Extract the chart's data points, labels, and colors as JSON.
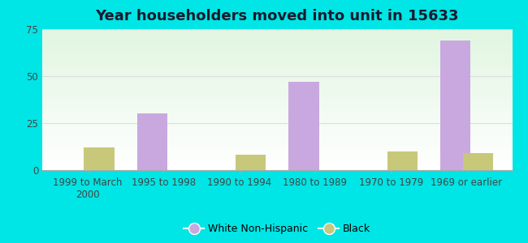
{
  "title": "Year householders moved into unit in 15633",
  "categories": [
    "1999 to March\n2000",
    "1995 to 1998",
    "1990 to 1994",
    "1980 to 1989",
    "1970 to 1979",
    "1969 or earlier"
  ],
  "white_non_hispanic": [
    0,
    30,
    0,
    47,
    0,
    69
  ],
  "black": [
    12,
    0,
    8,
    0,
    10,
    9
  ],
  "white_color": "#c9a8e0",
  "black_color": "#c8c87a",
  "ylim": [
    0,
    75
  ],
  "yticks": [
    0,
    25,
    50,
    75
  ],
  "background_outer": "#00e5e5",
  "bar_width": 0.4,
  "title_fontsize": 13,
  "tick_fontsize": 8.5,
  "legend_fontsize": 9
}
